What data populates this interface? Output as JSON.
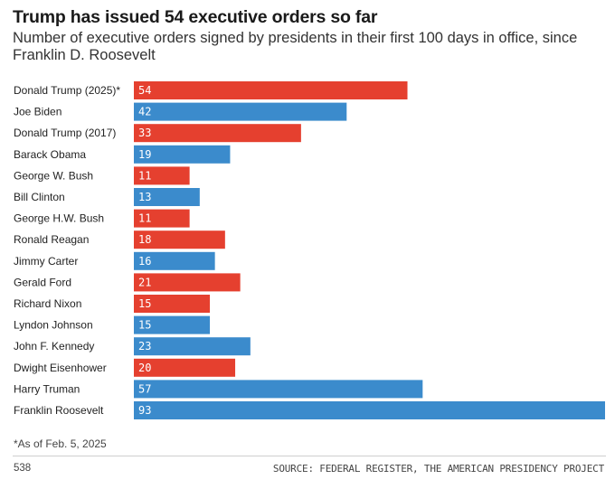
{
  "header": {
    "title": "Trump has issued 54 executive orders so far",
    "subtitle": "Number of executive orders signed by presidents in their first 100 days in office, since Franklin D. Roosevelt"
  },
  "footer": {
    "footnote": "*As of Feb. 5, 2025",
    "brand": "538",
    "source": "SOURCE: FEDERAL REGISTER, THE AMERICAN PRESIDENCY PROJECT"
  },
  "colors": {
    "republican": "#e5402f",
    "democrat": "#3b8bcc"
  },
  "chart_data": {
    "type": "bar",
    "orientation": "horizontal",
    "title": "Trump has issued 54 executive orders so far",
    "subtitle": "Number of executive orders signed by presidents in their first 100 days in office, since Franklin D. Roosevelt",
    "xlabel": "",
    "ylabel": "",
    "xlim": [
      0,
      93
    ],
    "grid": false,
    "categories": [
      "Donald Trump (2025)*",
      "Joe Biden",
      "Donald Trump (2017)",
      "Barack Obama",
      "George W. Bush",
      "Bill Clinton",
      "George H.W. Bush",
      "Ronald Reagan",
      "Jimmy Carter",
      "Gerald Ford",
      "Richard Nixon",
      "Lyndon Johnson",
      "John F. Kennedy",
      "Dwight Eisenhower",
      "Harry Truman",
      "Franklin Roosevelt"
    ],
    "values": [
      54,
      42,
      33,
      19,
      11,
      13,
      11,
      18,
      16,
      21,
      15,
      15,
      23,
      20,
      57,
      93
    ],
    "party": [
      "R",
      "D",
      "R",
      "D",
      "R",
      "D",
      "R",
      "R",
      "D",
      "R",
      "R",
      "D",
      "D",
      "R",
      "D",
      "D"
    ]
  }
}
